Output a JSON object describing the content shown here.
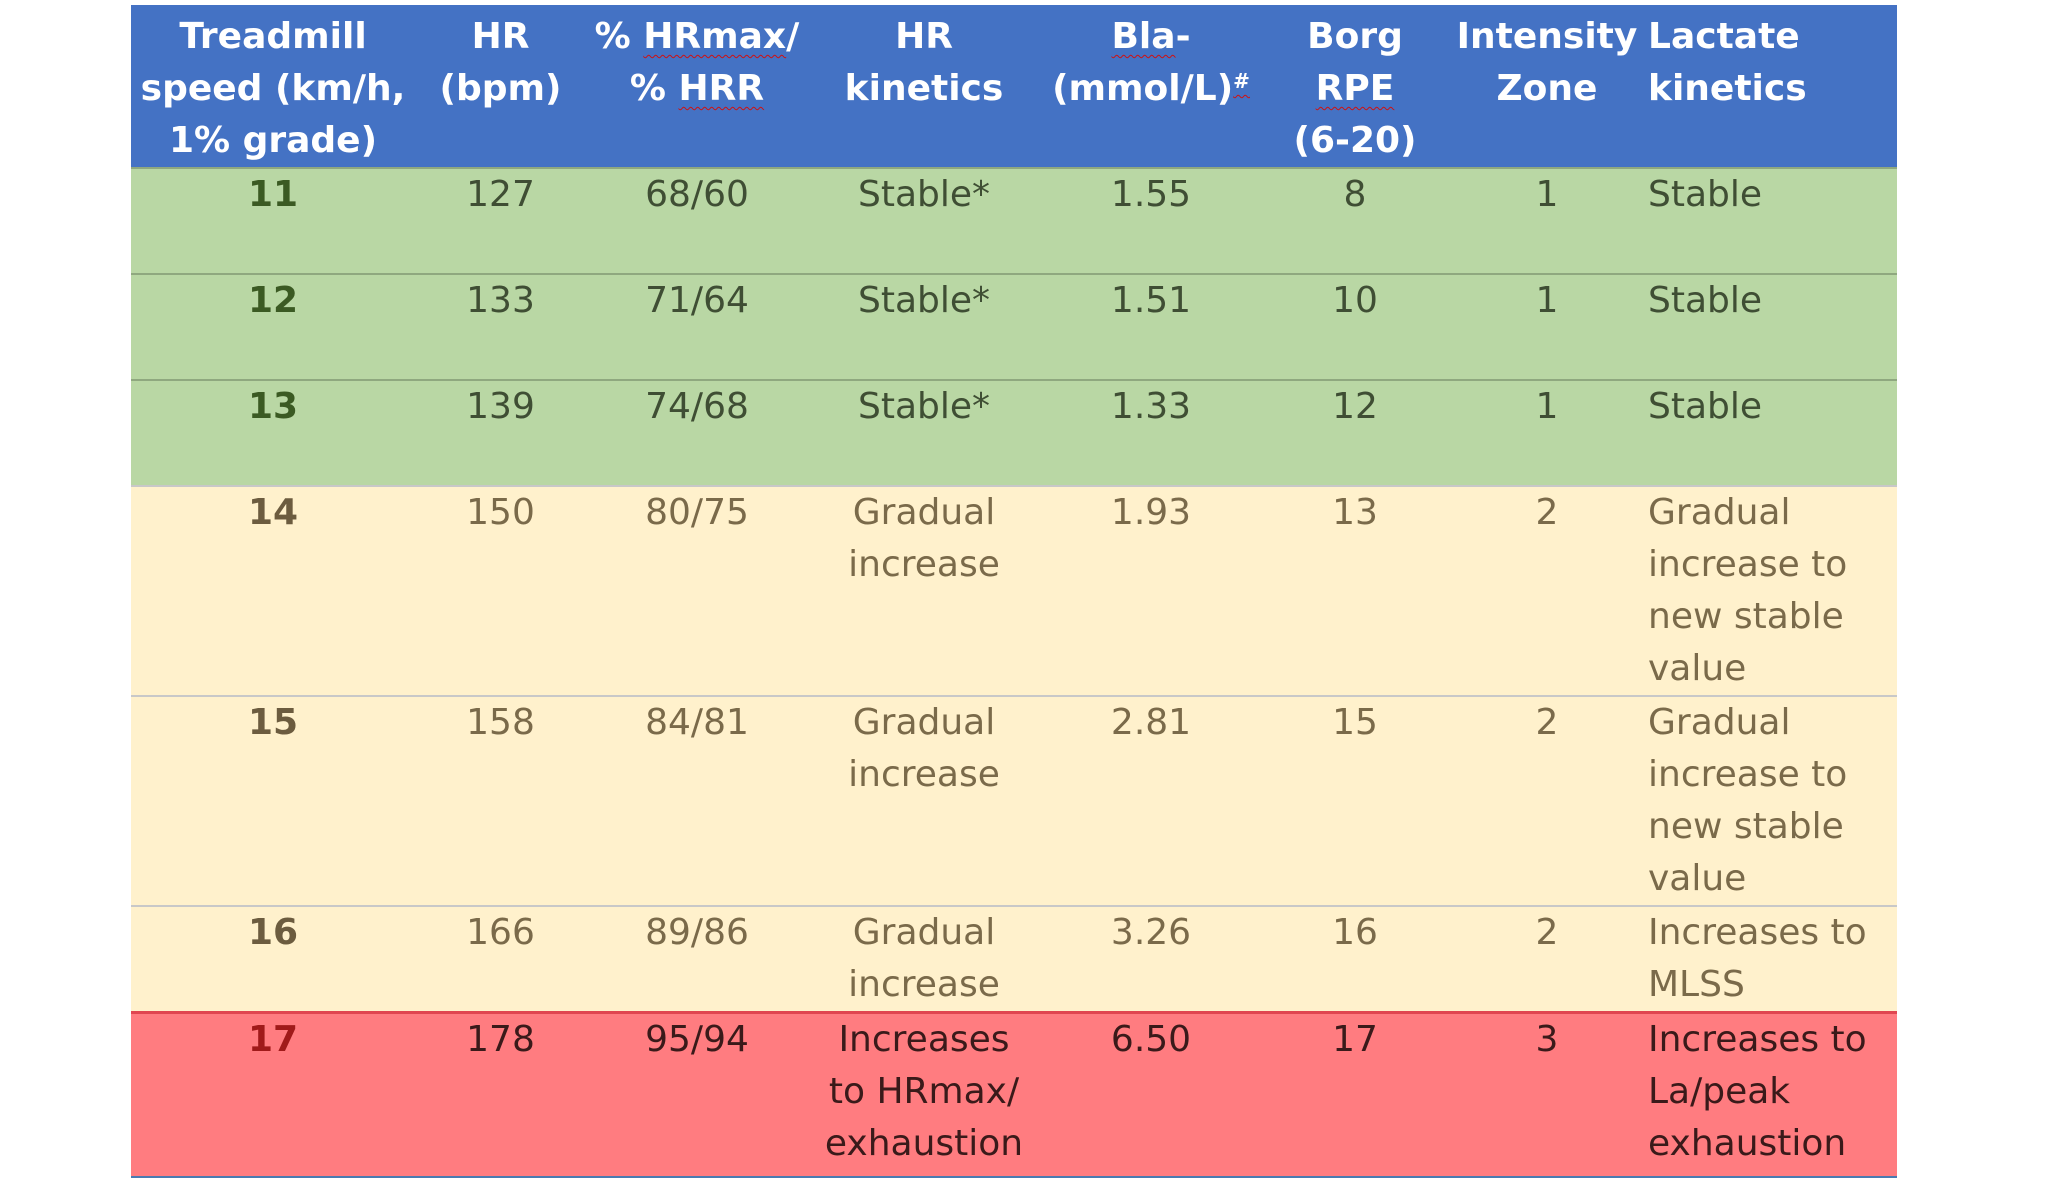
{
  "header": {
    "speed": [
      "Treadmill",
      "speed (km/h,",
      "1% grade)"
    ],
    "hr": [
      "HR",
      "(bpm)"
    ],
    "pct_a": "% ",
    "pct_b": "HRmax",
    "pct_c": "/",
    "pct_d": "% ",
    "pct_e": "HRR",
    "hrk": [
      "HR",
      "kinetics"
    ],
    "bla_a": "Bla",
    "bla_b": "-",
    "bla_c": "(mmol/L)",
    "bla_sup": "#",
    "borg_a": "Borg",
    "borg_b": "RPE",
    "borg_c": "(6-20)",
    "zone": [
      "Intensity",
      "Zone"
    ],
    "lactate": [
      "Lactate",
      "kinetics"
    ]
  },
  "rows": [
    {
      "zone": 1,
      "speed": "11",
      "hr": "127",
      "pct": "68/60",
      "hr_kinetics": [
        "Stable*"
      ],
      "bla": "1.55",
      "borg": "8",
      "intensity": "1",
      "lactate": [
        "Stable"
      ]
    },
    {
      "zone": 1,
      "speed": "12",
      "hr": "133",
      "pct": "71/64",
      "hr_kinetics": [
        "Stable*"
      ],
      "bla": "1.51",
      "borg": "10",
      "intensity": "1",
      "lactate": [
        "Stable"
      ]
    },
    {
      "zone": 1,
      "speed": "13",
      "hr": "139",
      "pct": "74/68",
      "hr_kinetics": [
        "Stable*"
      ],
      "bla": "1.33",
      "borg": "12",
      "intensity": "1",
      "lactate": [
        "Stable"
      ]
    },
    {
      "zone": 2,
      "speed": "14",
      "hr": "150",
      "pct": "80/75",
      "hr_kinetics": [
        "Gradual",
        "increase"
      ],
      "bla": "1.93",
      "borg": "13",
      "intensity": "2",
      "lactate": [
        "Gradual",
        "increase to",
        "new stable",
        "value"
      ]
    },
    {
      "zone": 2,
      "speed": "15",
      "hr": "158",
      "pct": "84/81",
      "hr_kinetics": [
        "Gradual",
        "increase"
      ],
      "bla": "2.81",
      "borg": "15",
      "intensity": "2",
      "lactate": [
        "Gradual",
        "increase to",
        "new stable",
        "value"
      ]
    },
    {
      "zone": 2,
      "speed": "16",
      "hr": "166",
      "pct": "89/86",
      "hr_kinetics": [
        "Gradual",
        "increase"
      ],
      "bla": "3.26",
      "borg": "16",
      "intensity": "2",
      "lactate": [
        "Increases to",
        "MLSS"
      ]
    },
    {
      "zone": 3,
      "speed": "17",
      "hr": "178",
      "pct": "95/94",
      "hr_kinetics": [
        "Increases",
        "to HRmax/",
        "exhaustion"
      ],
      "bla": "6.50",
      "borg": "17",
      "intensity": "3",
      "lactate": [
        "Increases to",
        "La/peak",
        "exhaustion"
      ]
    }
  ]
}
